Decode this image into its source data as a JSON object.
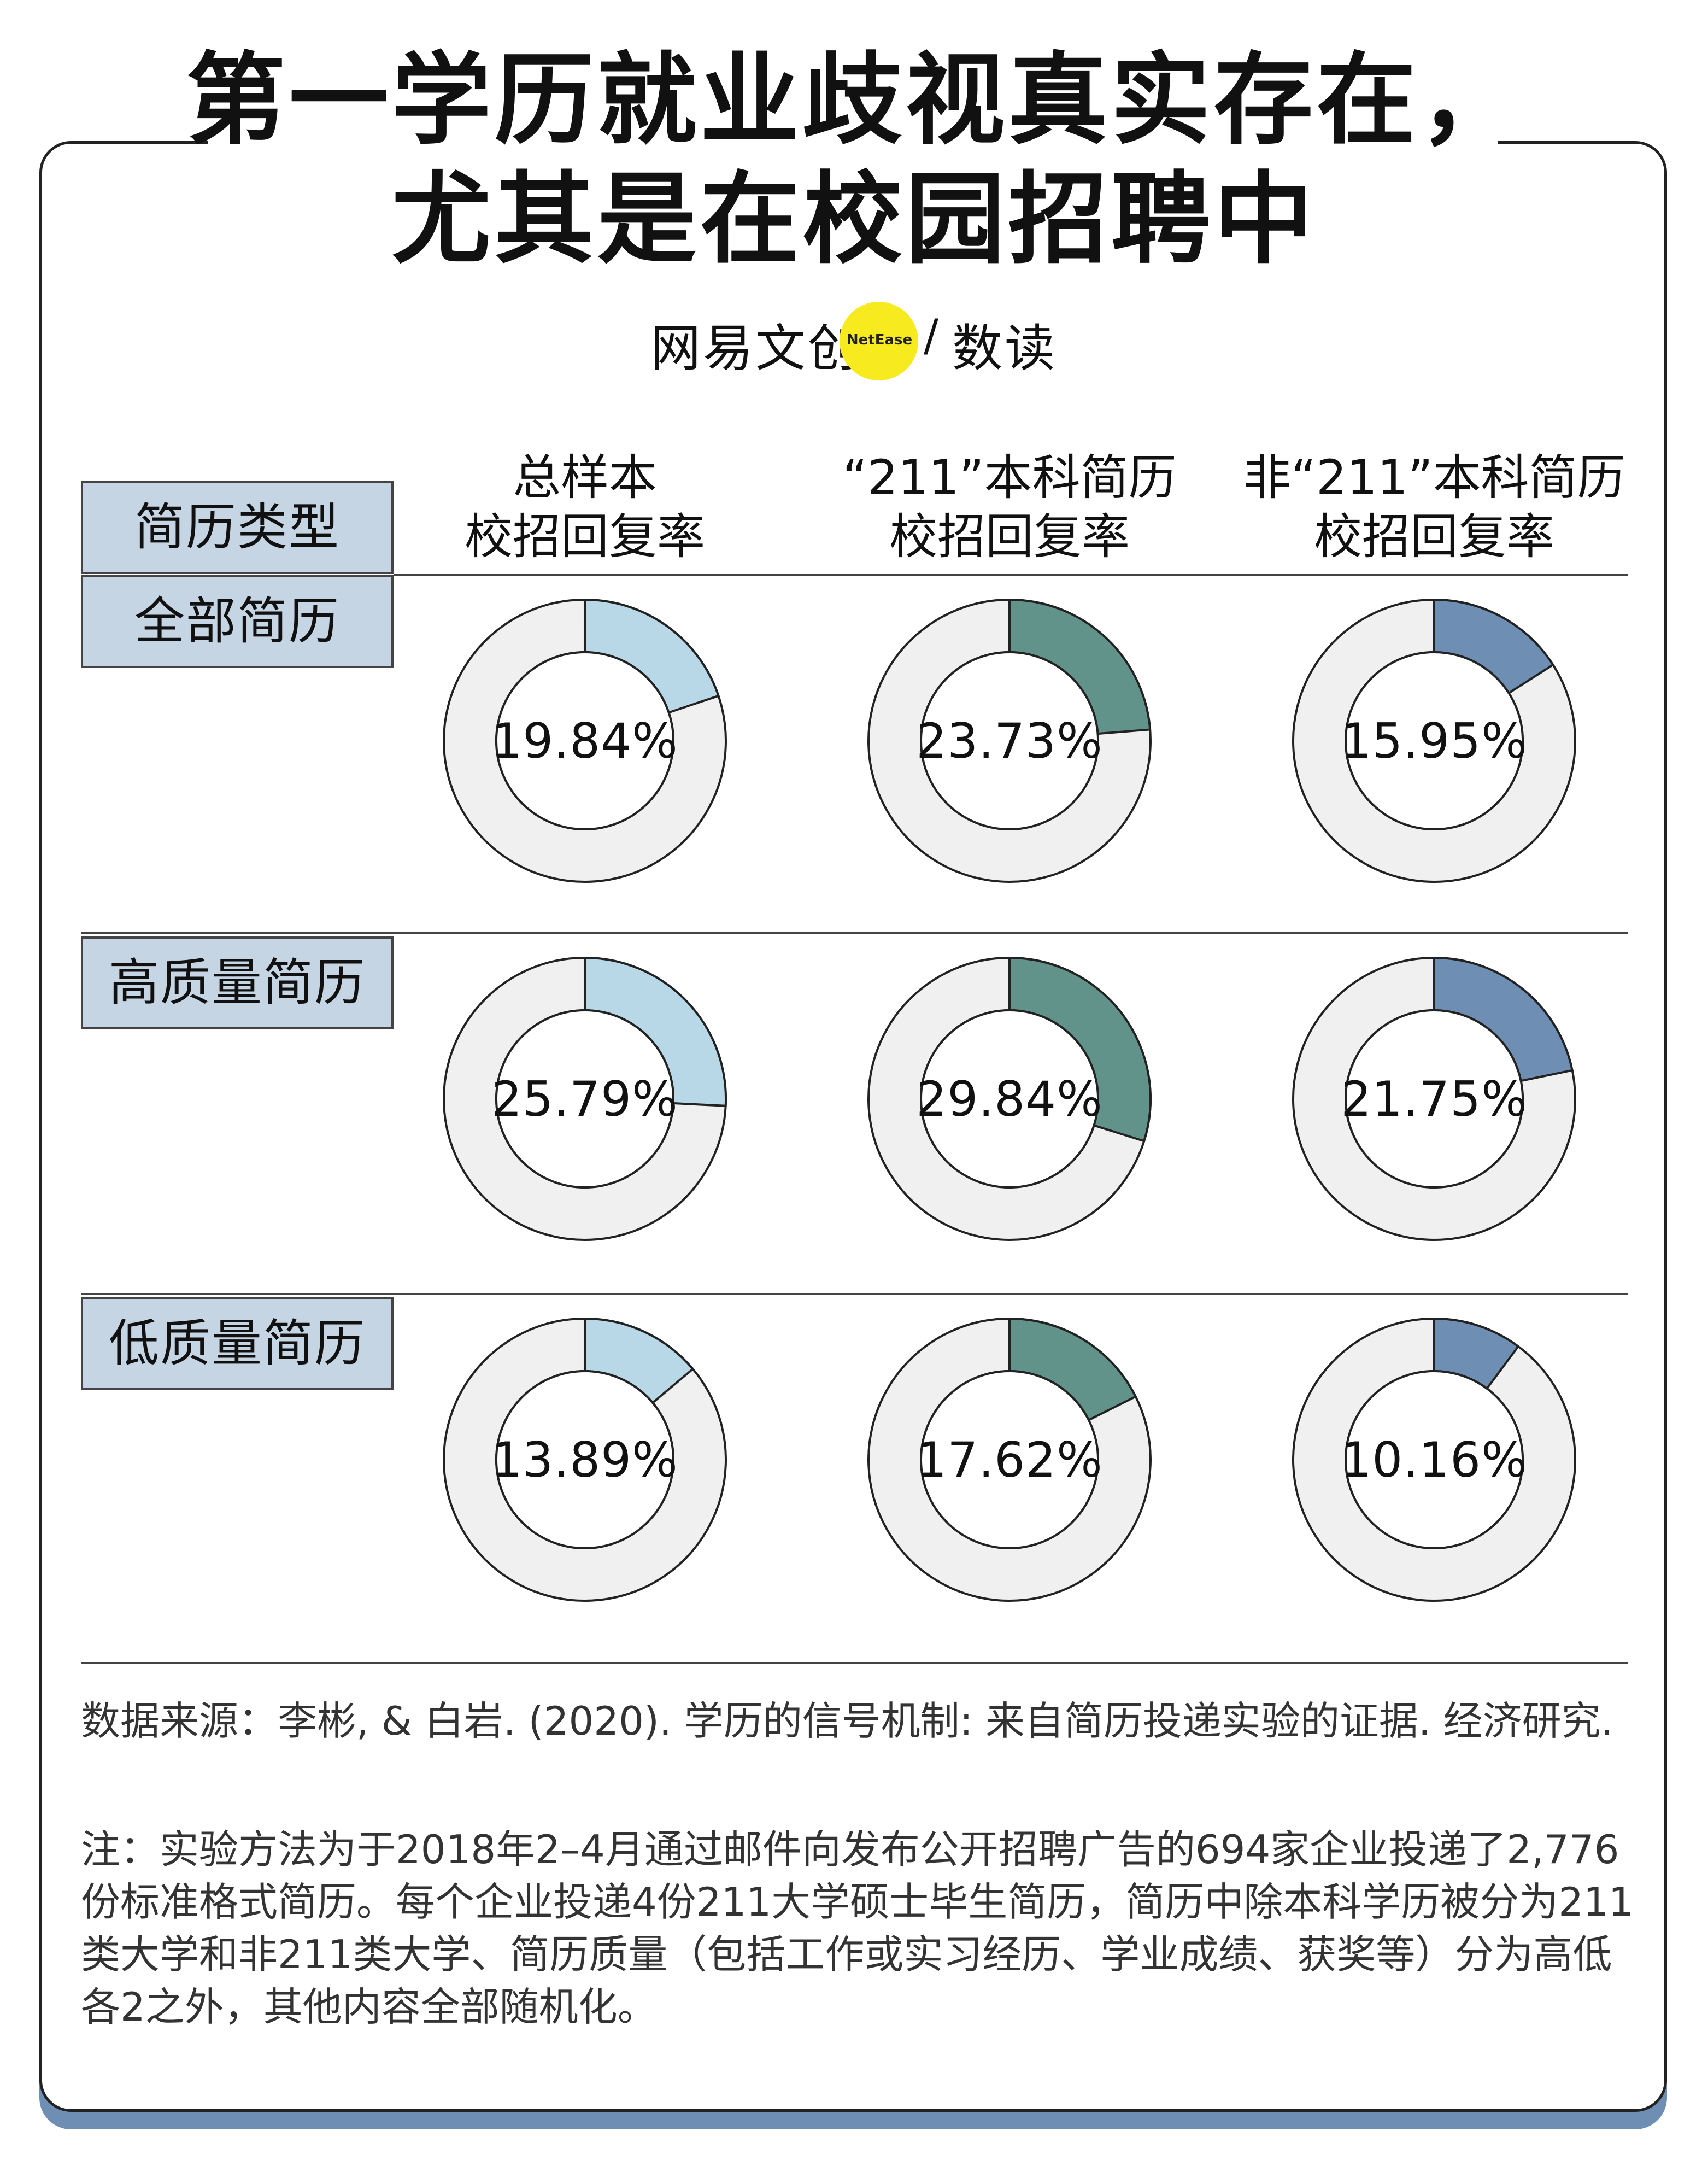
{
  "title": {
    "line1": "第一学历就业歧视真实存在，",
    "line2": "尤其是在校园招聘中"
  },
  "brand": {
    "left": "网易文创",
    "dot_text": "NetEase",
    "separator": "/",
    "right": "数读"
  },
  "header": {
    "row_header": "简历类型",
    "columns": [
      {
        "line1": "总样本",
        "line2": "校招回复率"
      },
      {
        "line1": "“211”本科简历",
        "line2": "校招回复率"
      },
      {
        "line1": "非“211”本科简历",
        "line2": "校招回复率"
      }
    ]
  },
  "colors": {
    "track": "#f0f0f0",
    "stroke": "#222222",
    "series": [
      "#b8d8e8",
      "#62938a",
      "#6e8fb3"
    ],
    "label_bg": "#c6d5e4",
    "card_shadow": "#6e8fb3"
  },
  "chart_data": {
    "type": "donut",
    "title": "第一学历就业歧视真实存在，尤其是在校园招聘中",
    "unit": "%",
    "columns": [
      "总样本 校招回复率",
      "“211”本科简历 校招回复率",
      "非“211”本科简历 校招回复率"
    ],
    "rows": [
      {
        "label": "全部简历",
        "values": [
          19.84,
          23.73,
          15.95
        ],
        "labels": [
          "19.84%",
          "23.73%",
          "15.95%"
        ]
      },
      {
        "label": "高质量简历",
        "values": [
          25.79,
          29.84,
          21.75
        ],
        "labels": [
          "25.79%",
          "29.84%",
          "21.75%"
        ]
      },
      {
        "label": "低质量简历",
        "values": [
          13.89,
          17.62,
          10.16
        ],
        "labels": [
          "13.89%",
          "17.62%",
          "10.16%"
        ]
      }
    ]
  },
  "footer": {
    "source": "数据来源：李彬, & 白岩. (2020). 学历的信号机制: 来自简历投递实验的证据. 经济研究.",
    "note": "注：实验方法为于2018年2–4月通过邮件向发布公开招聘广告的694家企业投递了2,776份标准格式简历。每个企业投递4份211大学硕士毕生简历，简历中除本科学历被分为211类大学和非211类大学、简历质量（包括工作或实习经历、学业成绩、获奖等）分为高低各2之外，其他内容全部随机化。"
  }
}
